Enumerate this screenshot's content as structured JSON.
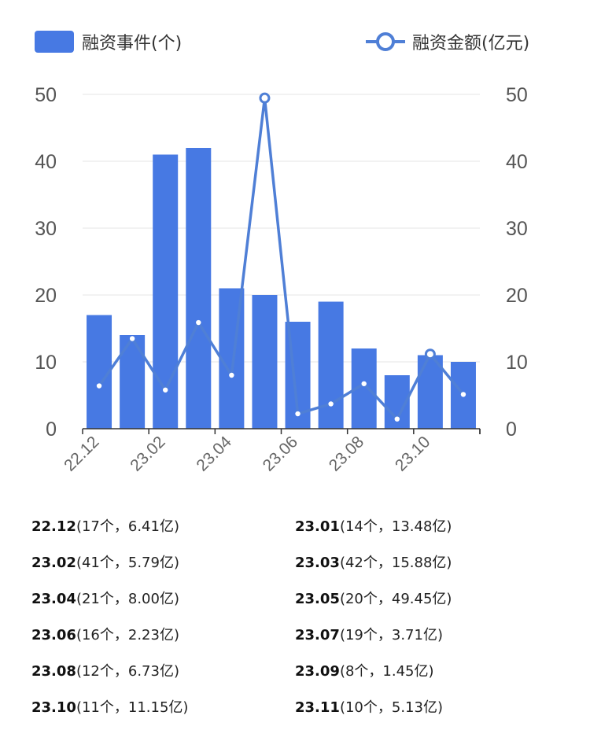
{
  "chart_data": {
    "type": "bar",
    "categories": [
      "22.12",
      "23.01",
      "23.02",
      "23.03",
      "23.04",
      "23.05",
      "23.06",
      "23.07",
      "23.08",
      "23.09",
      "23.10",
      "23.11"
    ],
    "x_tick_labels": [
      "22.12",
      "23.02",
      "23.04",
      "23.06",
      "23.08",
      "23.10"
    ],
    "series": [
      {
        "name": "融资事件(个)",
        "type": "bar",
        "axis": "left",
        "color": "#4779e3",
        "values": [
          17,
          14,
          41,
          42,
          21,
          20,
          16,
          19,
          12,
          8,
          11,
          10
        ]
      },
      {
        "name": "融资金额(亿元)",
        "type": "line",
        "axis": "right",
        "color": "#4f7fd6",
        "values": [
          6.41,
          13.48,
          5.79,
          15.88,
          8.0,
          49.45,
          2.23,
          3.71,
          6.73,
          1.45,
          11.15,
          5.13
        ]
      }
    ],
    "ylim_left": [
      0,
      50
    ],
    "ylim_right": [
      0,
      50
    ],
    "y_ticks": [
      0,
      10,
      20,
      30,
      40,
      50
    ],
    "grid": true,
    "legend": "top"
  },
  "summary": [
    {
      "month": "23.01",
      "text": "(14个，13.48亿)"
    },
    {
      "month": "22.12",
      "text": "(17个，6.41亿)"
    },
    {
      "month": "23.03",
      "text": "(42个，15.88亿)"
    },
    {
      "month": "23.02",
      "text": "(41个，5.79亿)"
    },
    {
      "month": "23.05",
      "text": "(20个，49.45亿)"
    },
    {
      "month": "23.04",
      "text": "(21个，8.00亿)"
    },
    {
      "month": "23.07",
      "text": "(19个，3.71亿)"
    },
    {
      "month": "23.06",
      "text": "(16个，2.23亿)"
    },
    {
      "month": "23.09",
      "text": "(8个，1.45亿)"
    },
    {
      "month": "23.08",
      "text": "(12个，6.73亿)"
    },
    {
      "month": "23.11",
      "text": "(10个，5.13亿)"
    },
    {
      "month": "23.10",
      "text": "(11个，11.15亿)"
    }
  ]
}
